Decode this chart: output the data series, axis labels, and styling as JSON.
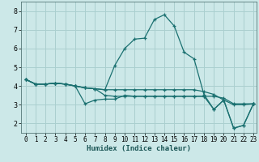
{
  "xlabel": "Humidex (Indice chaleur)",
  "background_color": "#cce8e8",
  "grid_color": "#aacfcf",
  "line_color": "#1a7070",
  "xlim": [
    -0.5,
    23.3
  ],
  "ylim": [
    1.5,
    8.5
  ],
  "xticks": [
    0,
    1,
    2,
    3,
    4,
    5,
    6,
    7,
    8,
    9,
    10,
    11,
    12,
    13,
    14,
    15,
    16,
    17,
    18,
    19,
    20,
    21,
    22,
    23
  ],
  "yticks": [
    2,
    3,
    4,
    5,
    6,
    7,
    8
  ],
  "lines": [
    {
      "x": [
        0,
        1,
        2,
        3,
        4,
        5,
        6,
        7,
        8,
        9,
        10,
        11,
        12,
        13,
        14,
        15,
        16,
        17,
        18,
        19,
        20,
        21,
        22,
        23
      ],
      "y": [
        4.35,
        4.1,
        4.1,
        4.15,
        4.1,
        4.0,
        3.9,
        3.85,
        3.8,
        5.1,
        6.0,
        6.5,
        6.55,
        7.55,
        7.8,
        7.2,
        5.8,
        5.45,
        3.55,
        2.75,
        3.25,
        1.75,
        1.9,
        3.05
      ]
    },
    {
      "x": [
        0,
        1,
        2,
        3,
        4,
        5,
        6,
        7,
        8,
        9,
        10,
        11,
        12,
        13,
        14,
        15,
        16,
        17,
        18,
        19,
        20,
        21,
        22,
        23
      ],
      "y": [
        4.35,
        4.1,
        4.1,
        4.15,
        4.1,
        4.0,
        3.05,
        3.25,
        3.3,
        3.3,
        3.5,
        3.45,
        3.45,
        3.45,
        3.45,
        3.45,
        3.45,
        3.45,
        3.45,
        2.75,
        3.25,
        1.75,
        1.9,
        3.05
      ]
    },
    {
      "x": [
        0,
        1,
        2,
        3,
        4,
        5,
        6,
        7,
        8,
        9,
        10,
        11,
        12,
        13,
        14,
        15,
        16,
        17,
        18,
        19,
        20,
        21,
        22,
        23
      ],
      "y": [
        4.35,
        4.1,
        4.1,
        4.15,
        4.1,
        4.0,
        3.9,
        3.85,
        3.8,
        3.8,
        3.8,
        3.8,
        3.8,
        3.8,
        3.8,
        3.8,
        3.8,
        3.8,
        3.7,
        3.55,
        3.25,
        3.0,
        3.0,
        3.05
      ]
    },
    {
      "x": [
        0,
        1,
        2,
        3,
        4,
        5,
        6,
        7,
        8,
        9,
        10,
        11,
        12,
        13,
        14,
        15,
        16,
        17,
        18,
        19,
        20,
        21,
        22,
        23
      ],
      "y": [
        4.35,
        4.1,
        4.1,
        4.15,
        4.1,
        4.0,
        3.9,
        3.85,
        3.5,
        3.45,
        3.45,
        3.45,
        3.45,
        3.45,
        3.45,
        3.45,
        3.45,
        3.45,
        3.45,
        3.45,
        3.35,
        3.05,
        3.05,
        3.05
      ]
    }
  ]
}
